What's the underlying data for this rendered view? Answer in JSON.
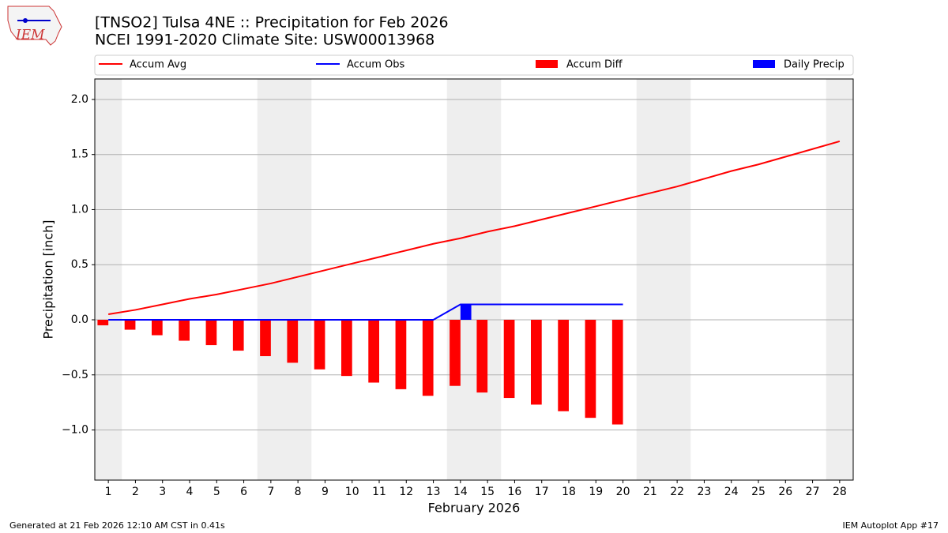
{
  "logo_text": "IEM",
  "footer_left": "Generated at 21 Feb 2026 12:10 AM CST in 0.41s",
  "footer_right": "IEM Autoplot App #17",
  "chart_data": {
    "type": "combo",
    "title": "[TNSO2] Tulsa 4NE :: Precipitation for Feb 2026",
    "subtitle": "NCEI 1991-2020 Climate Site: USW00013968",
    "x_label": "February 2026",
    "y_label": "Precipitation [inch]",
    "x": [
      1,
      2,
      3,
      4,
      5,
      6,
      7,
      8,
      9,
      10,
      11,
      12,
      13,
      14,
      15,
      16,
      17,
      18,
      19,
      20,
      21,
      22,
      23,
      24,
      25,
      26,
      27,
      28
    ],
    "xlim": [
      0.5,
      28.5
    ],
    "xticks": [
      1,
      2,
      3,
      4,
      5,
      6,
      7,
      8,
      9,
      10,
      11,
      12,
      13,
      14,
      15,
      16,
      17,
      18,
      19,
      20,
      21,
      22,
      23,
      24,
      25,
      26,
      27,
      28
    ],
    "ylim": [
      -1.455,
      2.186
    ],
    "yticks": [
      {
        "value": -1.0,
        "label": "−1.0"
      },
      {
        "value": -0.5,
        "label": "−0.5"
      },
      {
        "value": 0,
        "label": "0.0"
      },
      0.5,
      {
        "value": 1.0,
        "label": "1.0"
      },
      1.5,
      {
        "value": 2.0,
        "label": "2.0"
      }
    ],
    "grid": true,
    "legend": "upper center",
    "series": [
      {
        "name": "Accum Avg",
        "kind": "line",
        "color": "#ff0000",
        "values": [
          0.05,
          0.09,
          0.14,
          0.19,
          0.23,
          0.28,
          0.33,
          0.39,
          0.45,
          0.51,
          0.57,
          0.63,
          0.69,
          0.74,
          0.8,
          0.85,
          0.91,
          0.97,
          1.03,
          1.09,
          1.15,
          1.21,
          1.28,
          1.35,
          1.41,
          1.48,
          1.55,
          1.62
        ]
      },
      {
        "name": "Accum Obs",
        "kind": "line",
        "color": "#0000ff",
        "values": [
          0,
          0,
          0,
          0,
          0,
          0,
          0,
          0,
          0,
          0,
          0,
          0,
          0,
          0.14,
          0.14,
          0.14,
          0.14,
          0.14,
          0.14,
          0.14,
          null,
          null,
          null,
          null,
          null,
          null,
          null,
          null
        ]
      },
      {
        "name": "Accum Diff",
        "kind": "bar-left",
        "color": "#ff0000",
        "values": [
          -0.05,
          -0.09,
          -0.14,
          -0.19,
          -0.23,
          -0.28,
          -0.33,
          -0.39,
          -0.45,
          -0.51,
          -0.57,
          -0.63,
          -0.69,
          -0.6,
          -0.66,
          -0.71,
          -0.77,
          -0.83,
          -0.89,
          -0.95,
          null,
          null,
          null,
          null,
          null,
          null,
          null,
          null
        ]
      },
      {
        "name": "Daily Precip",
        "kind": "bar-right",
        "color": "#0000ff",
        "values": [
          0,
          0,
          0,
          0,
          0,
          0,
          0,
          0,
          0,
          0,
          0,
          0,
          0,
          0.14,
          0,
          0,
          0,
          0,
          0,
          0,
          null,
          null,
          null,
          null,
          null,
          null,
          null,
          null
        ]
      }
    ]
  }
}
